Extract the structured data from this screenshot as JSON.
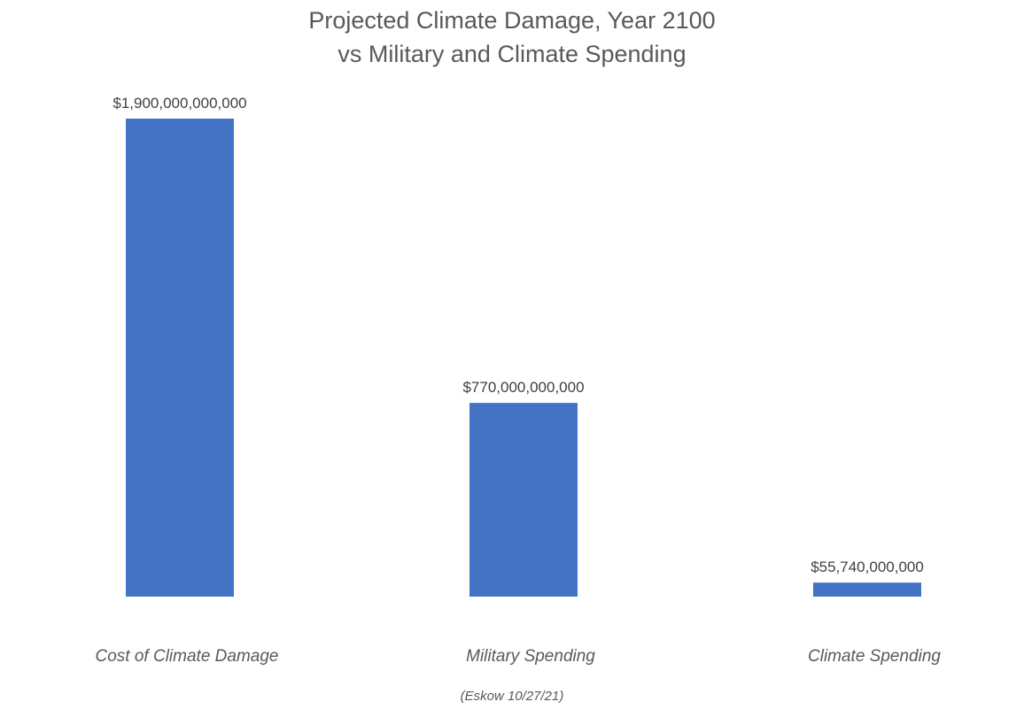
{
  "chart_data": {
    "type": "bar",
    "title": "Projected Climate Damage, Year 2100",
    "subtitle": "vs Military and Climate Spending",
    "categories": [
      "Cost of Climate Damage",
      "Military Spending",
      "Climate Spending"
    ],
    "values": [
      1900000000000,
      770000000000,
      55740000000
    ],
    "data_labels": [
      "$1,900,000,000,000",
      "$770,000,000,000",
      "$55,740,000,000"
    ],
    "xlabel": "",
    "ylabel": "",
    "ylim": [
      0,
      1900000000000
    ],
    "grid": false,
    "legend": "none",
    "bar_color": "#4472C4",
    "annotation": "(Eskow 10/27/21)"
  }
}
